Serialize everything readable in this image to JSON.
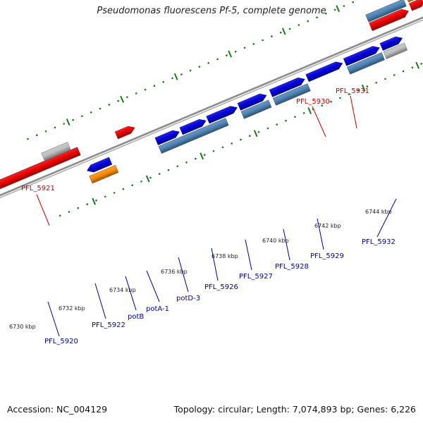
{
  "title": "Pseudomonas fluorescens Pf-5, complete genome",
  "footer": {
    "accession": "Accession: NC_004129",
    "topology": "Topology: circular; Length: 7,074,893 bp; Genes: 6,226"
  },
  "colors": {
    "backbone": "#8c8c8c",
    "tick": "#1a7a1a",
    "forward_cds": "#0000e0",
    "reverse_cds": "#ee0000",
    "gene_feature": "#4f86b8",
    "gene_reverse": "#ff8c00",
    "misc": "#c0c0c0",
    "dark_cds": "#5a4ea0",
    "label_red": "#cc0000",
    "label_blue": "#00009e"
  },
  "ticks": [
    "6730 kbp",
    "6732 kbp",
    "6734 kbp",
    "6736 kbp",
    "6738 kbp",
    "6740 kbp",
    "6742 kbp",
    "6744 kbp"
  ],
  "labels": {
    "red": [
      "PFL_5921",
      "PFL_5930",
      "PFL_5931"
    ],
    "blue": [
      "PFL_5920",
      "PFL_5922",
      "potB",
      "potA-1",
      "potD-3",
      "PFL_5926",
      "PFL_5927",
      "PFL_5928",
      "PFL_5929",
      "PFL_5932"
    ]
  }
}
